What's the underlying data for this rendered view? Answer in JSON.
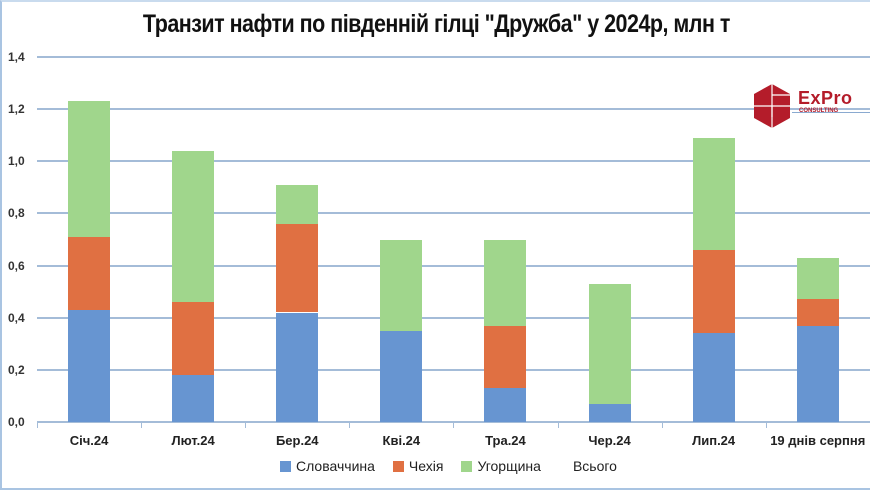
{
  "title": "Транзит нафти по південній гілці \"Дружба\" у 2024р, млн т",
  "logo": {
    "name": "ExPro",
    "subtitle": "CONSULTING",
    "color": "#b41c2a"
  },
  "y_axis": {
    "ticks": [
      "0,0",
      "0,2",
      "0,4",
      "0,6",
      "0,8",
      "1,0",
      "1,2",
      "1,4"
    ]
  },
  "legend": [
    {
      "label": "Словаччина",
      "color": "#6795d1"
    },
    {
      "label": "Чехія",
      "color": "#e07042"
    },
    {
      "label": "Угорщина",
      "color": "#a0d68c"
    },
    {
      "label": "Всього",
      "color": null
    }
  ],
  "chart_data": {
    "type": "bar",
    "stacked": true,
    "title": "Транзит нафти по південній гілці \"Дружба\" у 2024р, млн т",
    "xlabel": "",
    "ylabel": "млн т",
    "ylim": [
      0,
      1.4
    ],
    "yticks": [
      0.0,
      0.2,
      0.4,
      0.6,
      0.8,
      1.0,
      1.2,
      1.4
    ],
    "grid": true,
    "legend_position": "bottom",
    "categories": [
      "Січ.24",
      "Лют.24",
      "Бер.24",
      "Кві.24",
      "Тра.24",
      "Чер.24",
      "Лип.24",
      "19 днів серпня"
    ],
    "series": [
      {
        "name": "Словаччина",
        "color": "#6795d1",
        "values": [
          0.43,
          0.18,
          0.42,
          0.35,
          0.13,
          0.07,
          0.34,
          0.37
        ]
      },
      {
        "name": "Чехія",
        "color": "#e07042",
        "values": [
          0.28,
          0.28,
          0.34,
          0.0,
          0.24,
          0.0,
          0.32,
          0.1
        ]
      },
      {
        "name": "Угорщина",
        "color": "#a0d68c",
        "values": [
          0.52,
          0.58,
          0.15,
          0.35,
          0.33,
          0.46,
          0.43,
          0.16
        ]
      },
      {
        "name": "Всього",
        "color": null,
        "values": [
          1.23,
          1.04,
          0.91,
          0.7,
          0.7,
          0.53,
          1.09,
          0.63
        ]
      }
    ]
  }
}
